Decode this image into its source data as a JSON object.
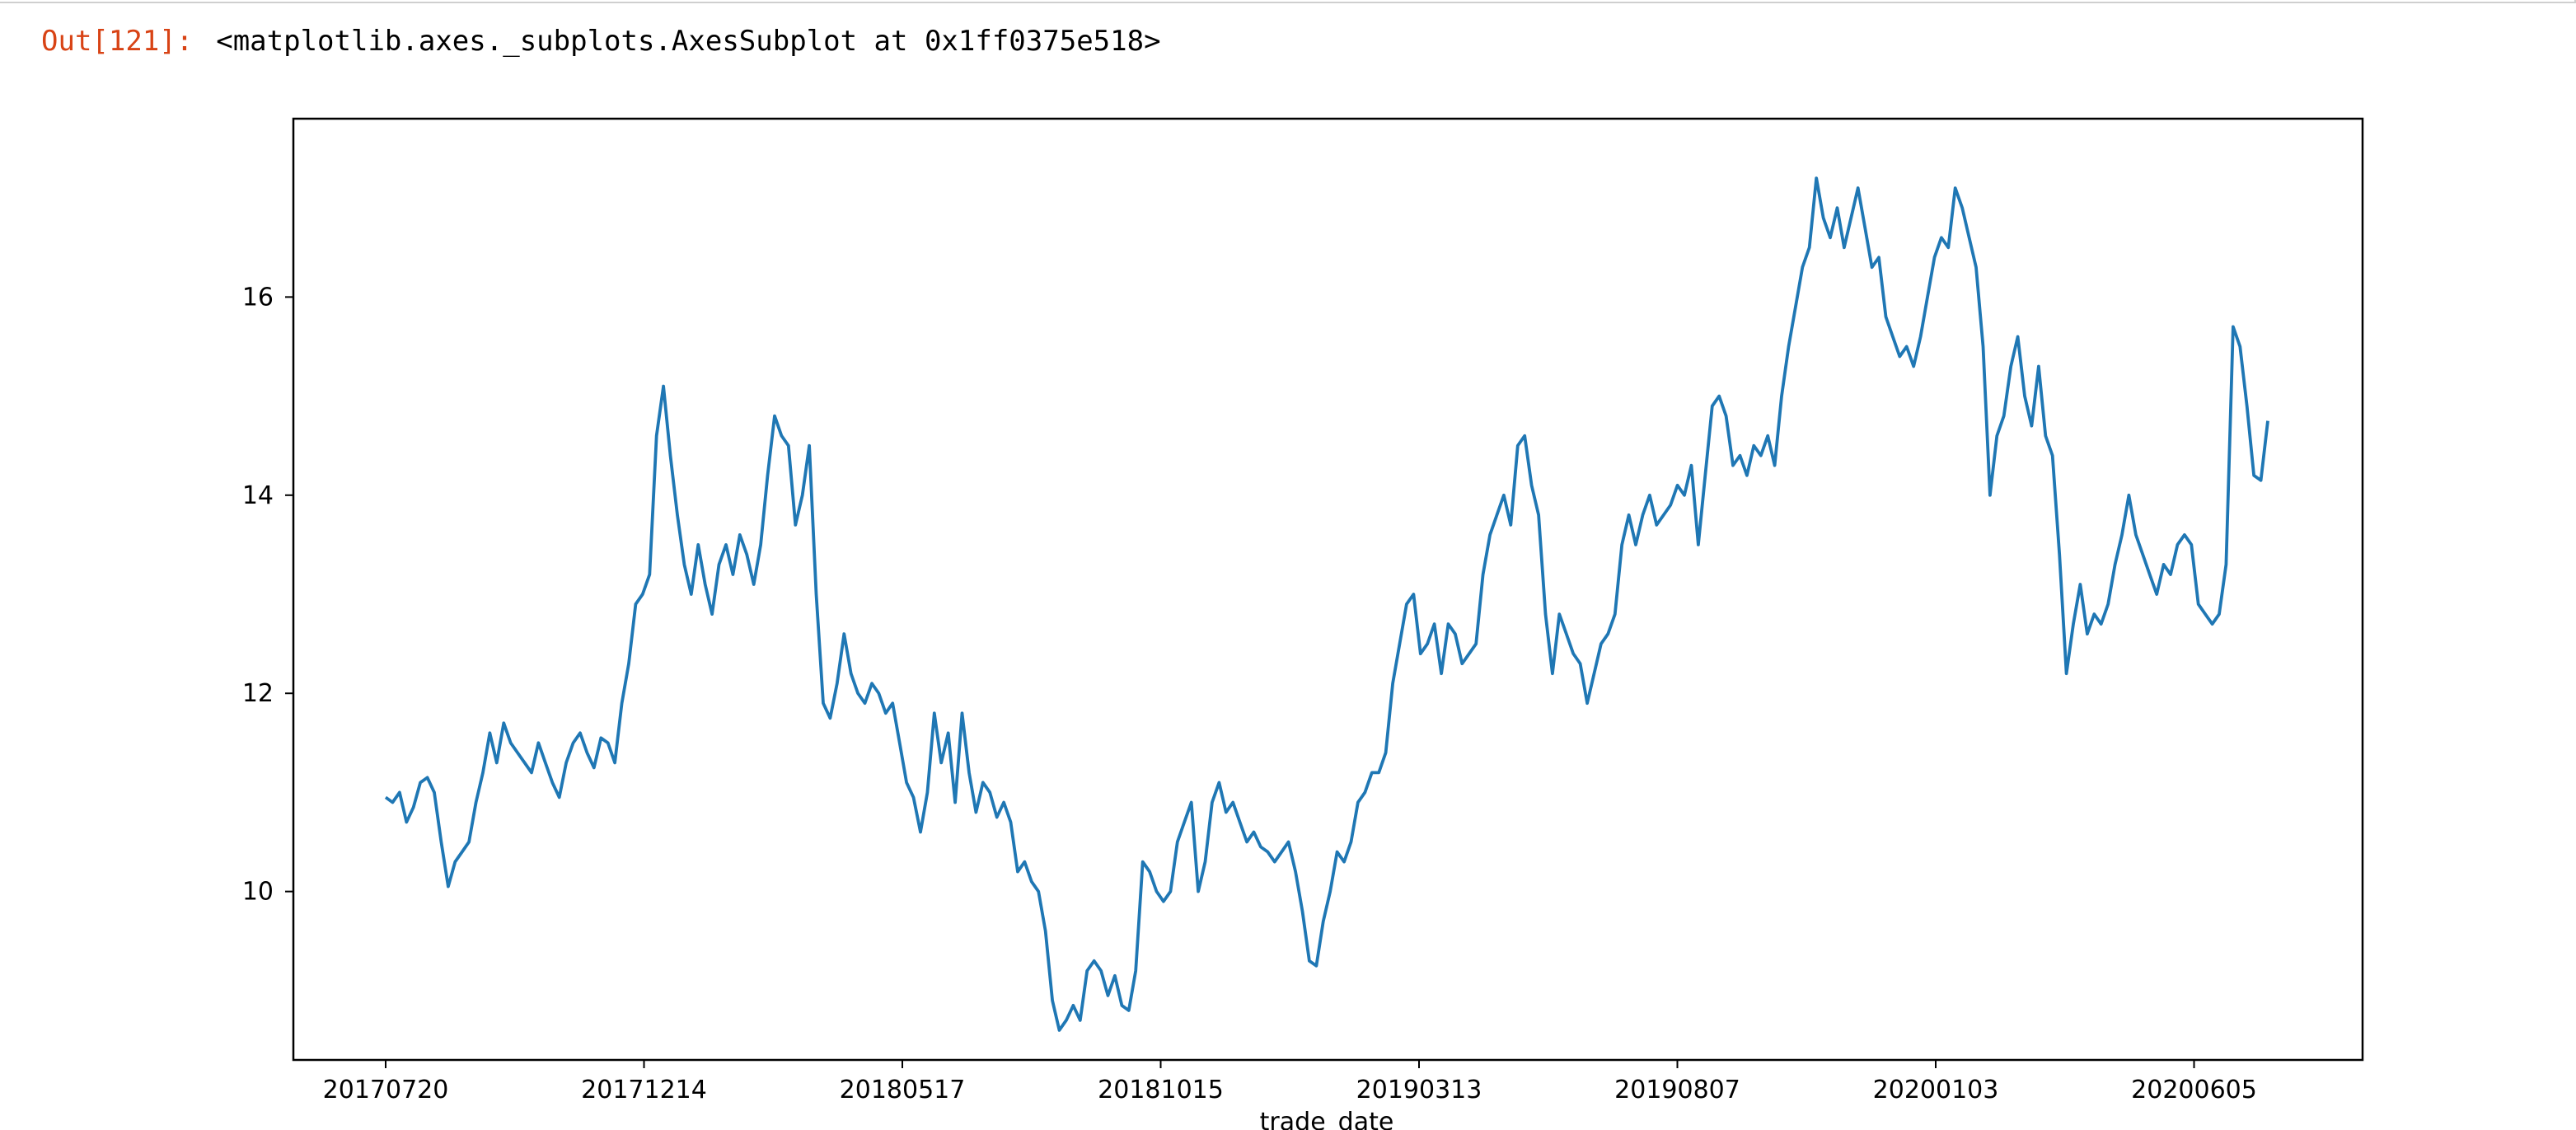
{
  "output_cell": {
    "prompt": "Out[121]:",
    "text": "<matplotlib.axes._subplots.AxesSubplot at 0x1ff0375e518>"
  },
  "colors": {
    "line": "#1f77b4",
    "prompt": "#d84315",
    "axes": "#000000"
  },
  "chart_data": {
    "type": "line",
    "title": "",
    "xlabel": "trade_date",
    "ylabel": "",
    "x_tick_labels": [
      "20170720",
      "20171214",
      "20180517",
      "20181015",
      "20190313",
      "20190807",
      "20200103",
      "20200605"
    ],
    "y_ticks": [
      10,
      12,
      14,
      16
    ],
    "ylim": [
      8.3,
      17.8
    ],
    "grid": false,
    "legend": "none",
    "series": [
      {
        "values": [
          10.95,
          10.9,
          11.0,
          10.7,
          10.85,
          11.1,
          11.15,
          11.0,
          10.5,
          10.05,
          10.3,
          10.4,
          10.5,
          10.9,
          11.2,
          11.6,
          11.3,
          11.7,
          11.5,
          11.4,
          11.3,
          11.2,
          11.5,
          11.3,
          11.1,
          10.95,
          11.3,
          11.5,
          11.6,
          11.4,
          11.25,
          11.55,
          11.5,
          11.3,
          11.9,
          12.3,
          12.9,
          13.0,
          13.2,
          14.6,
          15.1,
          14.4,
          13.8,
          13.3,
          13.0,
          13.5,
          13.1,
          12.8,
          13.3,
          13.5,
          13.2,
          13.6,
          13.4,
          13.1,
          13.5,
          14.2,
          14.8,
          14.6,
          14.5,
          13.7,
          14.0,
          14.5,
          13.0,
          11.9,
          11.75,
          12.1,
          12.6,
          12.2,
          12.0,
          11.9,
          12.1,
          12.0,
          11.8,
          11.9,
          11.5,
          11.1,
          10.95,
          10.6,
          11.0,
          11.8,
          11.3,
          11.6,
          10.9,
          11.8,
          11.2,
          10.8,
          11.1,
          11.0,
          10.75,
          10.9,
          10.7,
          10.2,
          10.3,
          10.1,
          10.0,
          9.6,
          8.9,
          8.6,
          8.7,
          8.85,
          8.7,
          9.2,
          9.3,
          9.2,
          8.95,
          9.15,
          8.85,
          8.8,
          9.2,
          10.3,
          10.2,
          10.0,
          9.9,
          10.0,
          10.5,
          10.7,
          10.9,
          10.0,
          10.3,
          10.9,
          11.1,
          10.8,
          10.9,
          10.7,
          10.5,
          10.6,
          10.45,
          10.4,
          10.3,
          10.4,
          10.5,
          10.2,
          9.8,
          9.3,
          9.25,
          9.7,
          10.0,
          10.4,
          10.3,
          10.5,
          10.9,
          11.0,
          11.2,
          11.2,
          11.4,
          12.1,
          12.5,
          12.9,
          13.0,
          12.4,
          12.5,
          12.7,
          12.2,
          12.7,
          12.6,
          12.3,
          12.4,
          12.5,
          13.2,
          13.6,
          13.8,
          14.0,
          13.7,
          14.5,
          14.6,
          14.1,
          13.8,
          12.8,
          12.2,
          12.8,
          12.6,
          12.4,
          12.3,
          11.9,
          12.2,
          12.5,
          12.6,
          12.8,
          13.5,
          13.8,
          13.5,
          13.8,
          14.0,
          13.7,
          13.8,
          13.9,
          14.1,
          14.0,
          14.3,
          13.5,
          14.2,
          14.9,
          15.0,
          14.8,
          14.3,
          14.4,
          14.2,
          14.5,
          14.4,
          14.6,
          14.3,
          15.0,
          15.5,
          15.9,
          16.3,
          16.5,
          17.2,
          16.8,
          16.6,
          16.9,
          16.5,
          16.8,
          17.1,
          16.7,
          16.3,
          16.4,
          15.8,
          15.6,
          15.4,
          15.5,
          15.3,
          15.6,
          16.0,
          16.4,
          16.6,
          16.5,
          17.1,
          16.9,
          16.6,
          16.3,
          15.5,
          14.0,
          14.6,
          14.8,
          15.3,
          15.6,
          15.0,
          14.7,
          15.3,
          14.6,
          14.4,
          13.4,
          12.2,
          12.7,
          13.1,
          12.6,
          12.8,
          12.7,
          12.9,
          13.3,
          13.6,
          14.0,
          13.6,
          13.4,
          13.2,
          13.0,
          13.3,
          13.2,
          13.5,
          13.6,
          13.5,
          12.9,
          12.8,
          12.7,
          12.8,
          13.3,
          15.7,
          15.5,
          14.9,
          14.2,
          14.15,
          14.75
        ]
      }
    ]
  }
}
